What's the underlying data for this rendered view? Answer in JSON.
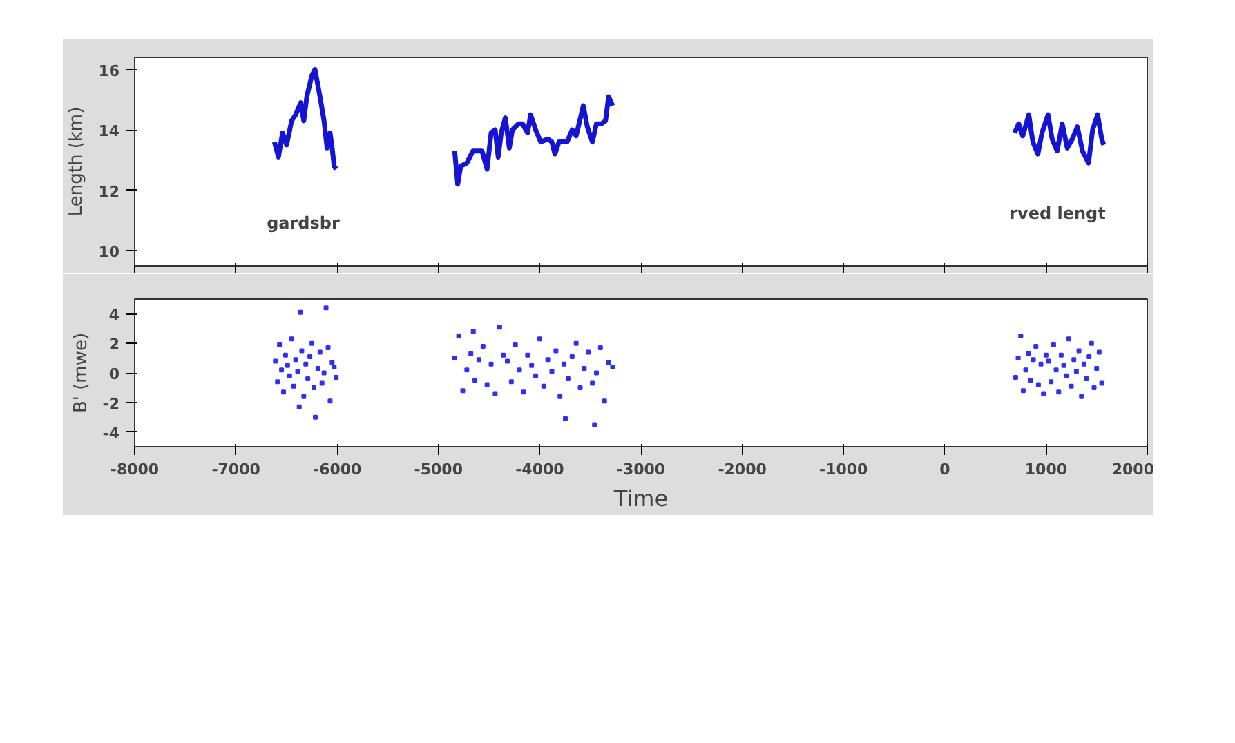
{
  "chart_data": [
    {
      "type": "line",
      "ylabel": "Length (km)",
      "xlim": [
        -8000,
        2000
      ],
      "ylim": [
        9.5,
        16.4
      ],
      "xticks": [
        -8000,
        -7000,
        -6000,
        -5000,
        -4000,
        -3000,
        -2000,
        -1000,
        0,
        1000,
        2000
      ],
      "yticks": [
        10,
        12,
        14,
        16
      ],
      "tick_labels": "y",
      "line_style": "solid",
      "annotations": [
        "gardsbr",
        "rved lengt"
      ],
      "x": [
        -6620,
        -6580,
        -6540,
        -6500,
        -6450,
        -6410,
        -6360,
        -6330,
        -6300,
        -6250,
        -6220,
        -6170,
        -6130,
        -6100,
        -6070,
        -6050,
        -6030,
        -6010,
        -5500,
        -4840,
        -4810,
        -4780,
        -4720,
        -4660,
        -4610,
        -4570,
        -4520,
        -4480,
        -4440,
        -4410,
        -4380,
        -4340,
        -4300,
        -4270,
        -4210,
        -4170,
        -4120,
        -4090,
        -4040,
        -3990,
        -3920,
        -3880,
        -3850,
        -3810,
        -3770,
        -3730,
        -3680,
        -3640,
        -3570,
        -3530,
        -3480,
        -3440,
        -3390,
        -3350,
        -3320,
        -3280,
        -1000,
        690,
        730,
        770,
        830,
        870,
        920,
        960,
        1020,
        1060,
        1110,
        1160,
        1210,
        1260,
        1310,
        1360,
        1420,
        1460,
        1510,
        1550,
        1570
      ],
      "series": [
        {
          "color": "#1414d2",
          "values": [
            13.6,
            13.1,
            13.9,
            13.5,
            14.3,
            14.5,
            14.9,
            14.3,
            15.1,
            15.8,
            16.0,
            15.1,
            14.3,
            13.4,
            13.9,
            13.4,
            12.8,
            12.7,
            null,
            13.3,
            12.2,
            12.8,
            12.9,
            13.3,
            13.3,
            13.3,
            12.7,
            13.9,
            14.0,
            13.1,
            13.9,
            14.4,
            13.4,
            14.0,
            14.2,
            14.2,
            13.9,
            14.5,
            14.0,
            13.6,
            13.7,
            13.6,
            13.2,
            13.6,
            13.6,
            13.6,
            14.0,
            13.8,
            14.8,
            14.1,
            13.6,
            14.2,
            14.2,
            14.3,
            15.1,
            14.8,
            null,
            13.9,
            14.2,
            13.8,
            14.5,
            13.6,
            13.2,
            13.9,
            14.5,
            13.7,
            13.3,
            14.2,
            13.4,
            13.7,
            14.1,
            13.3,
            12.9,
            14.0,
            14.5,
            13.7,
            13.5
          ]
        }
      ]
    },
    {
      "type": "scatter",
      "ylabel": "B' (mwe)",
      "xlabel": "Time",
      "xlim": [
        -8000,
        2000
      ],
      "ylim": [
        -5,
        5
      ],
      "xticks": [
        -8000,
        -7000,
        -6000,
        -5000,
        -4000,
        -3000,
        -2000,
        -1000,
        0,
        1000,
        2000
      ],
      "yticks": [
        -4,
        -2,
        0,
        2,
        4
      ],
      "marker": "square",
      "x": [
        -6610,
        -6590,
        -6570,
        -6550,
        -6530,
        -6510,
        -6490,
        -6470,
        -6450,
        -6430,
        -6410,
        -6390,
        -6375,
        -6363,
        -6350,
        -6330,
        -6310,
        -6290,
        -6270,
        -6250,
        -6230,
        -6216,
        -6190,
        -6170,
        -6150,
        -6130,
        -6110,
        -6090,
        -6070,
        -6050,
        -6030,
        -6010,
        -4840,
        -4800,
        -4760,
        -4720,
        -4680,
        -4656,
        -4640,
        -4600,
        -4560,
        -4520,
        -4480,
        -4440,
        -4396,
        -4360,
        -4320,
        -4280,
        -4240,
        -4200,
        -4160,
        -4120,
        -4080,
        -4040,
        -4000,
        -3960,
        -3920,
        -3880,
        -3840,
        -3800,
        -3760,
        -3747,
        -3720,
        -3680,
        -3640,
        -3600,
        -3560,
        -3520,
        -3480,
        -3459,
        -3440,
        -3400,
        -3360,
        -3320,
        -3280,
        700,
        725,
        750,
        775,
        800,
        825,
        850,
        875,
        900,
        925,
        950,
        975,
        1000,
        1025,
        1050,
        1075,
        1100,
        1125,
        1150,
        1175,
        1200,
        1225,
        1250,
        1275,
        1300,
        1325,
        1350,
        1375,
        1400,
        1425,
        1450,
        1475,
        1500,
        1525,
        1550
      ],
      "series": [
        {
          "color": "#3030f0",
          "values": [
            0.8,
            -0.6,
            1.9,
            0.2,
            -1.3,
            1.2,
            0.5,
            -0.2,
            2.3,
            -0.9,
            0.9,
            0.1,
            -2.3,
            4.1,
            1.5,
            -1.6,
            0.6,
            -0.4,
            1.1,
            2.0,
            -1.0,
            -3.0,
            0.3,
            1.4,
            -0.7,
            0.0,
            4.4,
            1.7,
            -1.9,
            0.7,
            0.4,
            -0.3,
            1.0,
            2.5,
            -1.2,
            0.2,
            1.3,
            2.8,
            -0.5,
            0.9,
            1.8,
            -0.8,
            0.6,
            -1.4,
            3.1,
            1.2,
            0.8,
            -0.6,
            1.9,
            0.2,
            -1.3,
            1.2,
            0.5,
            -0.2,
            2.3,
            -0.9,
            0.9,
            0.1,
            1.5,
            -1.6,
            0.6,
            -3.1,
            -0.4,
            1.1,
            2.0,
            -1.0,
            0.3,
            1.4,
            -0.7,
            -3.5,
            0.0,
            1.7,
            -1.9,
            0.7,
            0.4,
            -0.3,
            1.0,
            2.5,
            -1.2,
            0.2,
            1.3,
            -0.5,
            0.9,
            1.8,
            -0.8,
            0.6,
            -1.4,
            1.2,
            0.8,
            -0.6,
            1.9,
            0.2,
            -1.3,
            1.2,
            0.5,
            -0.2,
            2.3,
            -0.9,
            0.9,
            0.1,
            1.5,
            -1.6,
            0.6,
            -0.4,
            1.1,
            2.0,
            -1.0,
            0.3,
            1.4,
            -0.7
          ]
        }
      ]
    }
  ]
}
